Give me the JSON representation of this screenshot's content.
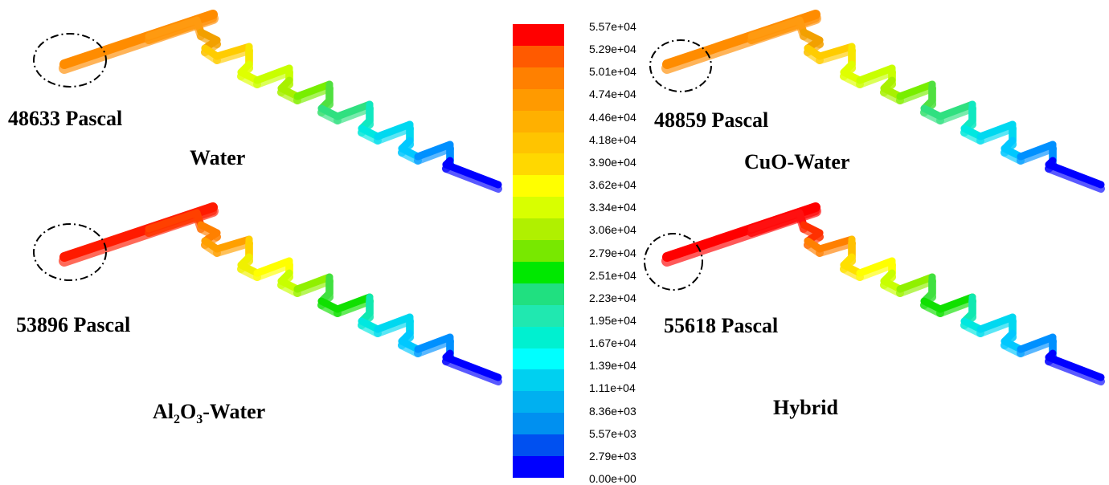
{
  "panels": [
    {
      "id": "water",
      "pressure_label": "48633 Pascal",
      "fluid_prefix": "Water",
      "segment_colors": [
        "#ff8c00",
        "#ff9a10",
        "#f2a000",
        "#ffcc00",
        "#f7e600",
        "#dfff00",
        "#c8ff00",
        "#a8f000",
        "#78ee00",
        "#50e040",
        "#30e080",
        "#10e8c0",
        "#00e8e0",
        "#00d8f0",
        "#00c8ff",
        "#0090ff",
        "#0000ff"
      ]
    },
    {
      "id": "cuo",
      "pressure_label": "48859 Pascal",
      "fluid_prefix": "CuO-Water",
      "segment_colors": [
        "#ff8c00",
        "#ff9a10",
        "#f2a000",
        "#ffcc00",
        "#f7e600",
        "#dfff00",
        "#c8ff00",
        "#a8f000",
        "#78ee00",
        "#50e040",
        "#30e080",
        "#10e8c0",
        "#00e8e0",
        "#00d8f0",
        "#00c8ff",
        "#0090ff",
        "#0000ff"
      ]
    },
    {
      "id": "al2o3",
      "pressure_label": "53896 Pascal",
      "fluid_prefix": "Al",
      "fluid_sub1": "2",
      "fluid_mid": "O",
      "fluid_sub2": "3",
      "fluid_suffix": "-Water",
      "segment_colors": [
        "#ff1a00",
        "#ff4000",
        "#ff8000",
        "#ffa000",
        "#ffd000",
        "#f0f000",
        "#ffff00",
        "#c8ff00",
        "#90f000",
        "#40e040",
        "#10e000",
        "#10e8b0",
        "#00e8e0",
        "#00d8f0",
        "#00c8ff",
        "#0090ff",
        "#0000ff"
      ]
    },
    {
      "id": "hybrid",
      "pressure_label": "55618 Pascal",
      "fluid_prefix": "Hybrid",
      "segment_colors": [
        "#ff0000",
        "#ff1010",
        "#ff3000",
        "#ff8000",
        "#ffc000",
        "#ffe000",
        "#ffff00",
        "#c8ff00",
        "#90f000",
        "#40e040",
        "#10e000",
        "#10e8b0",
        "#00e8e0",
        "#00d8f0",
        "#00c8ff",
        "#0090ff",
        "#0000ff"
      ]
    }
  ],
  "colorbar": {
    "ticks": [
      "5.57e+04",
      "5.29e+04",
      "5.01e+04",
      "4.74e+04",
      "4.46e+04",
      "4.18e+04",
      "3.90e+04",
      "3.62e+04",
      "3.34e+04",
      "3.06e+04",
      "2.79e+04",
      "2.51e+04",
      "2.23e+04",
      "1.95e+04",
      "1.67e+04",
      "1.39e+04",
      "1.11e+04",
      "8.36e+03",
      "5.57e+03",
      "2.79e+03",
      "0.00e+00"
    ],
    "colors": [
      "#ff0000",
      "#ff5a00",
      "#ff8000",
      "#ff9a00",
      "#ffb000",
      "#ffc400",
      "#ffd800",
      "#ffff00",
      "#d8ff00",
      "#b0f000",
      "#78e800",
      "#00e800",
      "#20e080",
      "#20e8b0",
      "#00f0d0",
      "#00ffff",
      "#00d0f0",
      "#00b0f0",
      "#0090f0",
      "#0050f0",
      "#0000ff"
    ]
  }
}
